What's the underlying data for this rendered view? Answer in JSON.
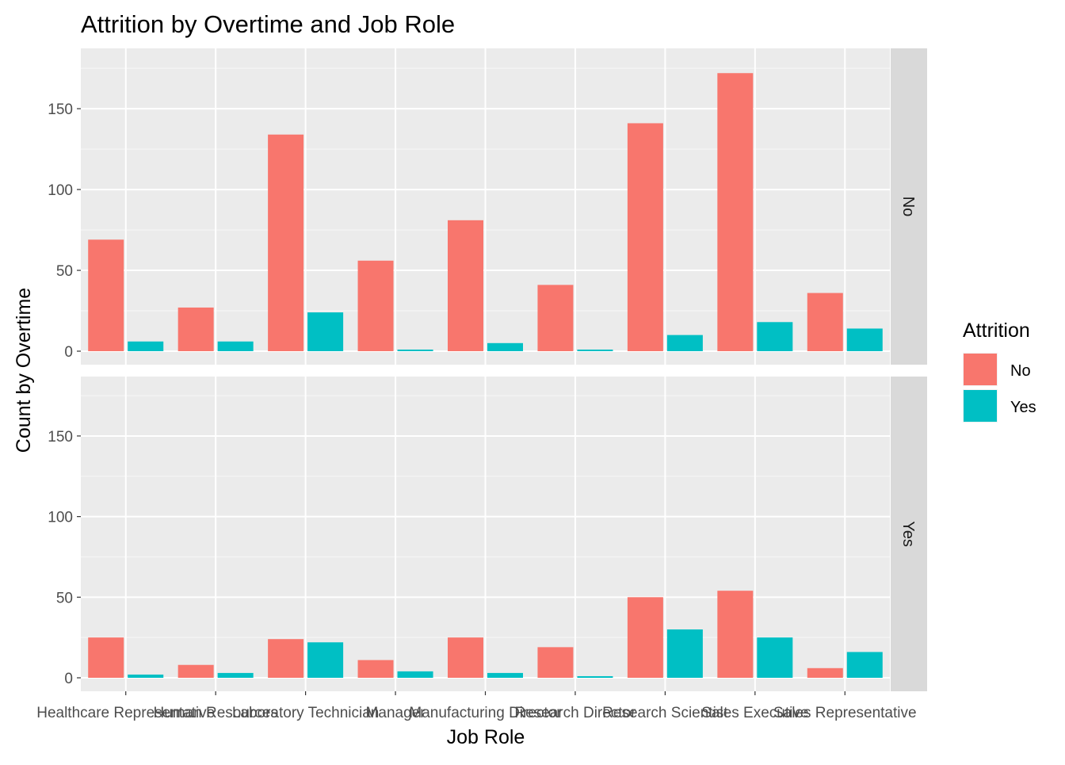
{
  "chart_data": {
    "type": "bar",
    "title": "Attrition by Overtime and Job Role",
    "xlabel": "Job Role",
    "ylabel": "Count by Overtime",
    "categories": [
      "Healthcare Representative",
      "Human Resources",
      "Laboratory Technician",
      "Manager",
      "Manufacturing Director",
      "Research Director",
      "Research Scientist",
      "Sales Executive",
      "Sales Representative"
    ],
    "ylim": [
      0,
      178
    ],
    "yticks": [
      0,
      50,
      100,
      150
    ],
    "grid": true,
    "legend": {
      "title": "Attrition",
      "placement": "right",
      "entries": [
        {
          "name": "No",
          "color": "#F8766D"
        },
        {
          "name": "Yes",
          "color": "#00BFC4"
        }
      ]
    },
    "facets": [
      {
        "label": "No",
        "series": [
          {
            "name": "No",
            "values": [
              69,
              27,
              134,
              56,
              81,
              41,
              141,
              172,
              36
            ]
          },
          {
            "name": "Yes",
            "values": [
              6,
              6,
              24,
              1,
              5,
              1,
              10,
              18,
              14
            ]
          }
        ]
      },
      {
        "label": "Yes",
        "series": [
          {
            "name": "No",
            "values": [
              25,
              8,
              24,
              11,
              25,
              19,
              50,
              54,
              6
            ]
          },
          {
            "name": "Yes",
            "values": [
              2,
              3,
              22,
              4,
              3,
              1,
              30,
              25,
              16
            ]
          }
        ]
      }
    ]
  }
}
